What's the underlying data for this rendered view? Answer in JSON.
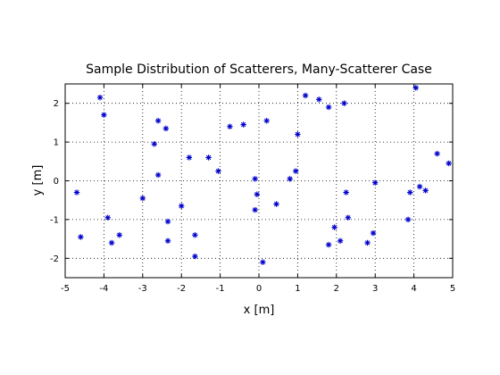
{
  "chart_data": {
    "type": "scatter",
    "title": "Sample Distribution of Scatterers, Many-Scatterer Case",
    "xlabel": "x [m]",
    "ylabel": "y [m]",
    "xlim": [
      -5,
      5
    ],
    "ylim": [
      -2.5,
      2.5
    ],
    "xticks": [
      -5,
      -4,
      -3,
      -2,
      -1,
      0,
      1,
      2,
      3,
      4,
      5
    ],
    "yticks": [
      -2,
      -1,
      0,
      1,
      2
    ],
    "grid": true,
    "marker": "asterisk",
    "color": "#0000cc",
    "points": [
      [
        -4.1,
        2.15
      ],
      [
        -4.0,
        1.7
      ],
      [
        -2.6,
        1.55
      ],
      [
        -2.4,
        1.35
      ],
      [
        -2.7,
        0.95
      ],
      [
        -1.8,
        0.6
      ],
      [
        -1.3,
        0.6
      ],
      [
        -2.6,
        0.15
      ],
      [
        -1.05,
        0.25
      ],
      [
        -0.75,
        1.4
      ],
      [
        -0.4,
        1.45
      ],
      [
        0.2,
        1.55
      ],
      [
        1.2,
        2.2
      ],
      [
        1.55,
        2.1
      ],
      [
        1.8,
        1.9
      ],
      [
        2.2,
        2.0
      ],
      [
        4.05,
        2.4
      ],
      [
        1.0,
        1.2
      ],
      [
        0.95,
        0.25
      ],
      [
        0.8,
        0.05
      ],
      [
        -0.1,
        0.05
      ],
      [
        -0.05,
        -0.35
      ],
      [
        -0.1,
        -0.75
      ],
      [
        0.45,
        -0.6
      ],
      [
        0.1,
        -2.1
      ],
      [
        -4.7,
        -0.3
      ],
      [
        -4.6,
        -1.45
      ],
      [
        -3.9,
        -0.95
      ],
      [
        -3.8,
        -1.6
      ],
      [
        -3.6,
        -1.4
      ],
      [
        -3.0,
        -0.45
      ],
      [
        -2.35,
        -1.05
      ],
      [
        -2.35,
        -1.55
      ],
      [
        -2.0,
        -0.65
      ],
      [
        -1.65,
        -1.4
      ],
      [
        -1.65,
        -1.95
      ],
      [
        2.25,
        -0.3
      ],
      [
        2.3,
        -0.95
      ],
      [
        1.95,
        -1.2
      ],
      [
        1.8,
        -1.65
      ],
      [
        2.1,
        -1.55
      ],
      [
        3.0,
        -0.05
      ],
      [
        2.95,
        -1.35
      ],
      [
        2.8,
        -1.6
      ],
      [
        3.9,
        -0.3
      ],
      [
        3.85,
        -1.0
      ],
      [
        4.15,
        -0.15
      ],
      [
        4.3,
        -0.25
      ],
      [
        4.6,
        0.7
      ],
      [
        4.9,
        0.45
      ]
    ]
  }
}
